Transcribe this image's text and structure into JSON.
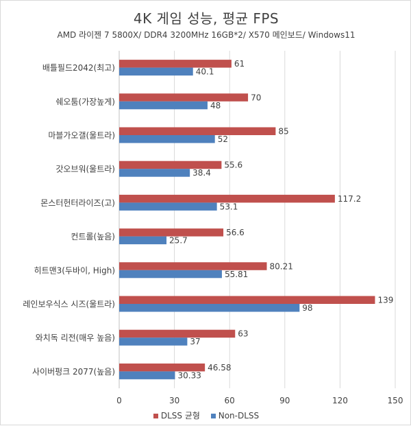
{
  "chart_data": {
    "type": "bar",
    "orientation": "horizontal",
    "title": "4K 게임 성능, 평균 FPS",
    "subtitle": "AMD 라이젠 7 5800X/ DDR4 3200MHz 16GB*2/ X570 메인보드/ Windows11",
    "categories": [
      "배틀필드2042(최고)",
      "쉐오툼(가장높게)",
      "마블가오갤(울트라)",
      "갓오브워(울트라)",
      "몬스터헌터라이즈(고)",
      "컨트롤(높음)",
      "히트맨3(두바이, High)",
      "레인보우식스 시즈(울트라)",
      "와치독 리전(매우 높음)",
      "사이버펑크 2077(높음)"
    ],
    "series": [
      {
        "name": "DLSS 균형",
        "color": "#c0504d",
        "values": [
          61,
          70,
          85,
          55.6,
          117.2,
          56.6,
          80.21,
          139,
          63,
          46.58
        ],
        "labels": [
          "61",
          "70",
          "85",
          "55.6",
          "117.2",
          "56.6",
          "80.21",
          "139",
          "63",
          "46.58"
        ]
      },
      {
        "name": "Non-DLSS",
        "color": "#4f81bd",
        "values": [
          40.1,
          48,
          52,
          38.4,
          53.1,
          25.7,
          55.81,
          98,
          37,
          30.33
        ],
        "labels": [
          "40.1",
          "48",
          "52",
          "38.4",
          "53.1",
          "25.7",
          "55.81",
          "98",
          "37",
          "30.33"
        ]
      }
    ],
    "xlim": [
      0,
      150
    ],
    "xticks": [
      "0",
      "30",
      "60",
      "90",
      "120",
      "150"
    ],
    "grid": true,
    "legend_position": "bottom"
  }
}
